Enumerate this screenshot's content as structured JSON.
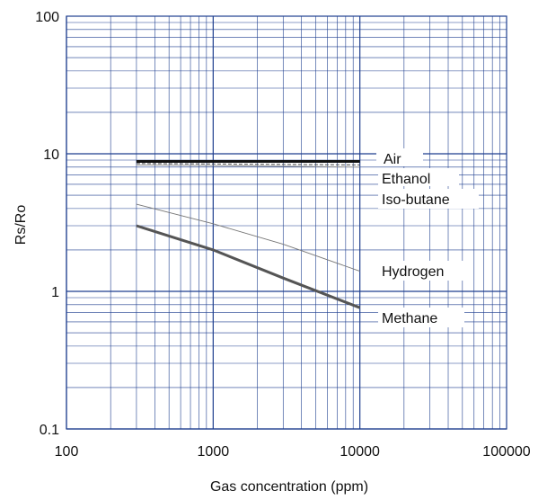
{
  "chart_data": {
    "type": "line",
    "xlabel": "Gas concentration (ppm)",
    "ylabel": "Rs/Ro",
    "x_scale": "log",
    "y_scale": "log",
    "xlim": [
      100,
      100000
    ],
    "ylim": [
      0.1,
      100
    ],
    "x_ticks": [
      "100",
      "1000",
      "10000",
      "100000"
    ],
    "y_ticks": [
      "0.1",
      "1",
      "10",
      "100"
    ],
    "grid": true,
    "legend": "labels at right end of each line",
    "colors": {
      "grid": "#1f3f8f",
      "air": "#111111",
      "ethanol": "#555555",
      "isobutane": "#888888",
      "hydrogen": "#777777",
      "methane": "#555555"
    },
    "series": [
      {
        "name": "Air",
        "x": [
          300,
          10000
        ],
        "y": [
          8.8,
          8.8
        ]
      },
      {
        "name": "Ethanol",
        "x": [
          300,
          10000
        ],
        "y": [
          8.5,
          8.3
        ]
      },
      {
        "name": "Iso-butane",
        "x": [
          300,
          10000
        ],
        "y": [
          8.3,
          8.0
        ]
      },
      {
        "name": "Hydrogen",
        "x": [
          300,
          1000,
          3000,
          10000
        ],
        "y": [
          4.3,
          3.1,
          2.2,
          1.4
        ]
      },
      {
        "name": "Methane",
        "x": [
          300,
          1000,
          3000,
          10000
        ],
        "y": [
          3.0,
          2.0,
          1.25,
          0.76
        ]
      }
    ]
  }
}
